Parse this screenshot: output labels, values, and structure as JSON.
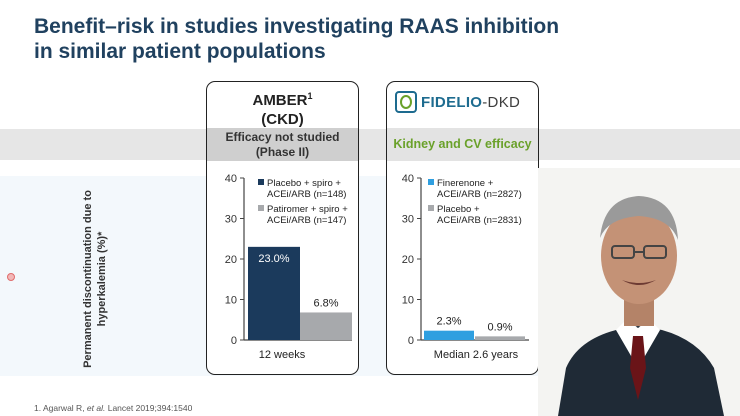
{
  "slide": {
    "title": "Benefit–risk in studies investigating RAAS inhibition\nin similar patient populations",
    "y_axis_label": "Permanent discontinuation due to hyperkalemia (%)*",
    "footnote_prefix": "1. Agarwal R, ",
    "footnote_italic": "et al.",
    "footnote_suffix": " Lancet 2019;394:1540"
  },
  "amber": {
    "title_line1": "AMBER",
    "superscript": "1",
    "title_line2": "(CKD)",
    "subtitle": "Efficacy not studied\n(Phase II)",
    "x_label": "12 weeks"
  },
  "fidelio": {
    "logo_main": "FIDELIO",
    "logo_suffix": "-DKD",
    "subtitle": "Kidney and CV efficacy",
    "x_label": "Median 2.6 years"
  },
  "colors": {
    "title": "#20415f",
    "amber_bar1": "#1b3a5c",
    "amber_bar2": "#a7a9ac",
    "fidelio_bar1": "#2f9fe0",
    "fidelio_bar2": "#a7a9ac",
    "efficacy_text": "#6aa12a"
  },
  "chart_data": [
    {
      "type": "bar",
      "ylim": [
        0,
        40
      ],
      "yticks": [
        0,
        10,
        20,
        30,
        40
      ],
      "xlabel": "12 weeks",
      "ylabel": "Permanent discontinuation due to hyperkalemia (%)*",
      "series": [
        {
          "name": "Placebo + spiro + ACEi/ARB (n=148)",
          "value": 23.0,
          "label": "23.0%"
        },
        {
          "name": "Patiromer + spiro + ACEi/ARB (n=147)",
          "value": 6.8,
          "label": "6.8%"
        }
      ]
    },
    {
      "type": "bar",
      "ylim": [
        0,
        40
      ],
      "yticks": [
        0,
        10,
        20,
        30,
        40
      ],
      "xlabel": "Median 2.6 years",
      "series": [
        {
          "name": "Finerenone + ACEi/ARB (n=2827)",
          "value": 2.3,
          "label": "2.3%"
        },
        {
          "name": "Placebo + ACEi/ARB (n=2831)",
          "value": 0.9,
          "label": "0.9%"
        }
      ]
    }
  ]
}
